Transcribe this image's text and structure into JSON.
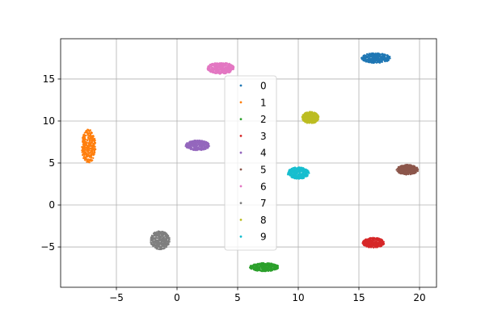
{
  "chart_data": {
    "type": "scatter",
    "title": "",
    "xlabel": "",
    "ylabel": "",
    "xlim": [
      -9.6,
      21.4
    ],
    "ylim": [
      -9.8,
      19.8
    ],
    "xticks": [
      -5,
      0,
      5,
      10,
      15,
      20
    ],
    "yticks": [
      -5,
      0,
      5,
      10,
      15
    ],
    "grid": true,
    "legend": {
      "placement": "center"
    },
    "series": [
      {
        "name": "0",
        "color": "#1f77b4",
        "clusters": [
          {
            "cx": 16.4,
            "cy": 17.5,
            "rx": 1.2,
            "ry": 0.6
          }
        ]
      },
      {
        "name": "1",
        "color": "#ff7f0e",
        "clusters": [
          {
            "cx": -7.3,
            "cy": 7.0,
            "rx": 0.6,
            "ry": 2.0
          }
        ]
      },
      {
        "name": "2",
        "color": "#2ca02c",
        "clusters": [
          {
            "cx": 7.2,
            "cy": -7.4,
            "rx": 1.2,
            "ry": 0.5
          }
        ]
      },
      {
        "name": "3",
        "color": "#d62728",
        "clusters": [
          {
            "cx": 16.2,
            "cy": -4.5,
            "rx": 0.9,
            "ry": 0.6
          }
        ]
      },
      {
        "name": "4",
        "color": "#9467bd",
        "clusters": [
          {
            "cx": 1.7,
            "cy": 7.1,
            "rx": 1.0,
            "ry": 0.6
          }
        ]
      },
      {
        "name": "5",
        "color": "#8c564b",
        "clusters": [
          {
            "cx": 19.0,
            "cy": 4.2,
            "rx": 0.9,
            "ry": 0.6
          }
        ]
      },
      {
        "name": "6",
        "color": "#e377c2",
        "clusters": [
          {
            "cx": 3.6,
            "cy": 16.3,
            "rx": 1.1,
            "ry": 0.7
          }
        ]
      },
      {
        "name": "7",
        "color": "#7f7f7f",
        "clusters": [
          {
            "cx": -1.4,
            "cy": -4.2,
            "rx": 0.8,
            "ry": 1.1
          }
        ]
      },
      {
        "name": "8",
        "color": "#bcbd22",
        "clusters": [
          {
            "cx": 11.0,
            "cy": 10.4,
            "rx": 0.7,
            "ry": 0.7
          }
        ]
      },
      {
        "name": "9",
        "color": "#17becf",
        "clusters": [
          {
            "cx": 10.0,
            "cy": 3.8,
            "rx": 0.9,
            "ry": 0.7
          }
        ]
      }
    ]
  }
}
